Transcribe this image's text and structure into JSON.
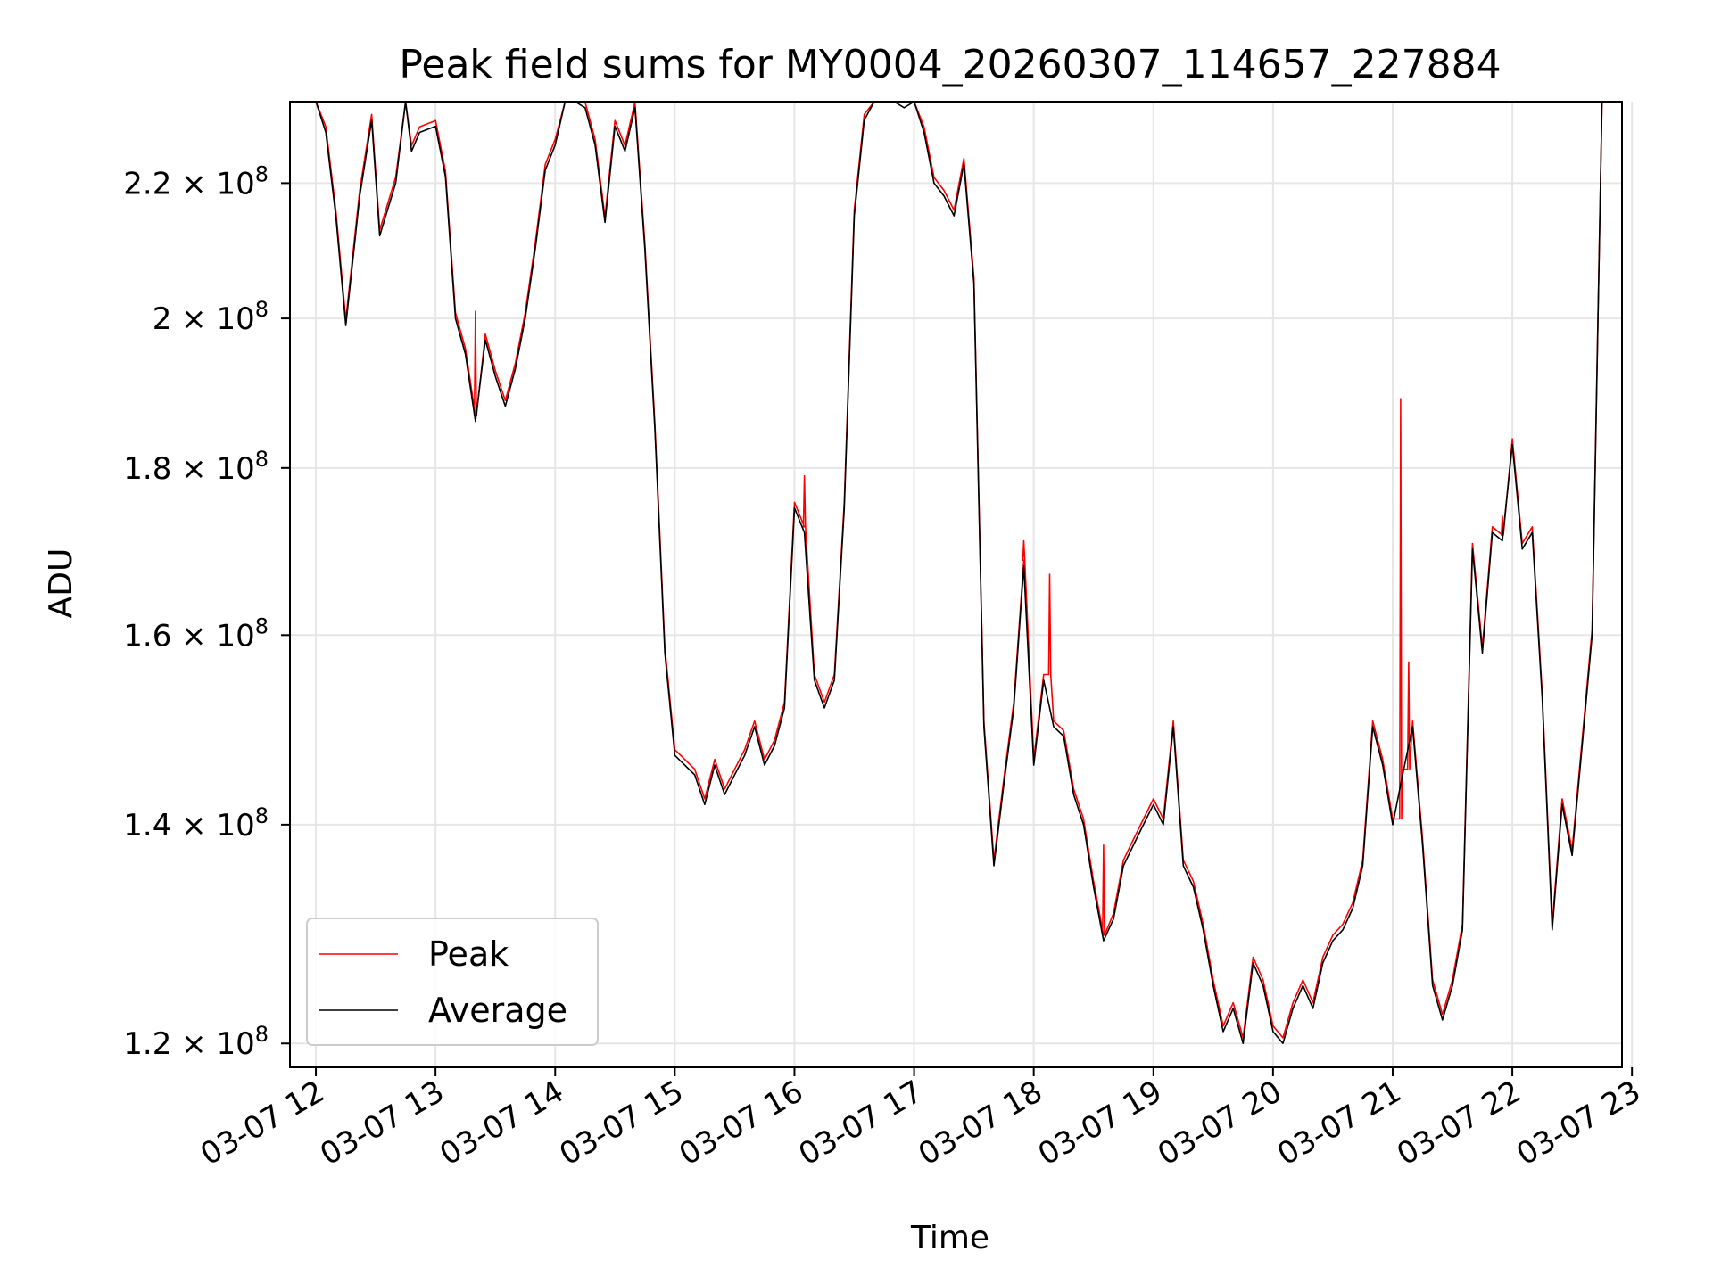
{
  "chart_data": {
    "type": "line",
    "title": "Peak field sums for MY0004_20260307_114657_227884",
    "xlabel": "Time",
    "ylabel": "ADU",
    "yscale": "log",
    "xlim": [
      "03-07 11:47",
      "03-07 22:55"
    ],
    "ylim": [
      118000000,
      233000000
    ],
    "grid": true,
    "legend_position": "lower-left",
    "x_ticks": [
      "03-07 12",
      "03-07 13",
      "03-07 14",
      "03-07 15",
      "03-07 16",
      "03-07 17",
      "03-07 18",
      "03-07 19",
      "03-07 20",
      "03-07 21",
      "03-07 22",
      "03-07 23"
    ],
    "y_ticks": [
      {
        "value": 120000000,
        "mantissa": "1.2",
        "exp": "8"
      },
      {
        "value": 140000000,
        "mantissa": "1.4",
        "exp": "8"
      },
      {
        "value": 160000000,
        "mantissa": "1.6",
        "exp": "8"
      },
      {
        "value": 180000000,
        "mantissa": "1.8",
        "exp": "8"
      },
      {
        "value": 200000000,
        "mantissa": "2",
        "exp": "8"
      },
      {
        "value": 220000000,
        "mantissa": "2.2",
        "exp": "8"
      }
    ],
    "series": [
      {
        "name": "Peak",
        "color": "#ff0000"
      },
      {
        "name": "Average",
        "color": "#000000"
      }
    ],
    "x": [
      "03-07 11:47",
      "03-07 12:00",
      "03-07 12:05",
      "03-07 12:10",
      "03-07 12:15",
      "03-07 12:22",
      "03-07 12:28",
      "03-07 12:32",
      "03-07 12:40",
      "03-07 12:45",
      "03-07 12:48",
      "03-07 12:52",
      "03-07 13:00",
      "03-07 13:05",
      "03-07 13:10",
      "03-07 13:15",
      "03-07 13:20",
      "03-07 13:25",
      "03-07 13:30",
      "03-07 13:35",
      "03-07 13:40",
      "03-07 13:45",
      "03-07 13:50",
      "03-07 13:55",
      "03-07 14:00",
      "03-07 14:05",
      "03-07 14:10",
      "03-07 14:15",
      "03-07 14:20",
      "03-07 14:25",
      "03-07 14:30",
      "03-07 14:35",
      "03-07 14:40",
      "03-07 14:45",
      "03-07 14:50",
      "03-07 14:55",
      "03-07 15:00",
      "03-07 15:05",
      "03-07 15:10",
      "03-07 15:15",
      "03-07 15:20",
      "03-07 15:25",
      "03-07 15:30",
      "03-07 15:35",
      "03-07 15:40",
      "03-07 15:45",
      "03-07 15:50",
      "03-07 15:55",
      "03-07 16:00",
      "03-07 16:05",
      "03-07 16:10",
      "03-07 16:15",
      "03-07 16:20",
      "03-07 16:25",
      "03-07 16:30",
      "03-07 16:35",
      "03-07 16:40",
      "03-07 16:45",
      "03-07 16:50",
      "03-07 16:55",
      "03-07 17:00",
      "03-07 17:05",
      "03-07 17:10",
      "03-07 17:15",
      "03-07 17:20",
      "03-07 17:25",
      "03-07 17:30",
      "03-07 17:35",
      "03-07 17:40",
      "03-07 17:45",
      "03-07 17:50",
      "03-07 17:55",
      "03-07 18:00",
      "03-07 18:05",
      "03-07 18:10",
      "03-07 18:15",
      "03-07 18:20",
      "03-07 18:25",
      "03-07 18:30",
      "03-07 18:35",
      "03-07 18:40",
      "03-07 18:45",
      "03-07 18:50",
      "03-07 18:55",
      "03-07 19:00",
      "03-07 19:05",
      "03-07 19:10",
      "03-07 19:15",
      "03-07 19:20",
      "03-07 19:25",
      "03-07 19:30",
      "03-07 19:35",
      "03-07 19:40",
      "03-07 19:45",
      "03-07 19:50",
      "03-07 19:55",
      "03-07 20:00",
      "03-07 20:05",
      "03-07 20:10",
      "03-07 20:15",
      "03-07 20:20",
      "03-07 20:25",
      "03-07 20:30",
      "03-07 20:35",
      "03-07 20:40",
      "03-07 20:45",
      "03-07 20:50",
      "03-07 20:55",
      "03-07 21:00",
      "03-07 21:05",
      "03-07 21:10",
      "03-07 21:15",
      "03-07 21:20",
      "03-07 21:25",
      "03-07 21:30",
      "03-07 21:35",
      "03-07 21:40",
      "03-07 21:45",
      "03-07 21:50",
      "03-07 21:55",
      "03-07 22:00",
      "03-07 22:05",
      "03-07 22:10",
      "03-07 22:15",
      "03-07 22:20",
      "03-07 22:25",
      "03-07 22:30",
      "03-07 22:35",
      "03-07 22:40",
      "03-07 22:45",
      "03-07 22:50",
      "03-07 22:55"
    ],
    "average": [
      233000000,
      233000000,
      228000000,
      215000000,
      199000000,
      218000000,
      230000000,
      212000000,
      220000000,
      233000000,
      225000000,
      228000000,
      229000000,
      221000000,
      200000000,
      195000000,
      186000000,
      197000000,
      192000000,
      188000000,
      193000000,
      200000000,
      210000000,
      222000000,
      226000000,
      233000000,
      233000000,
      232000000,
      226000000,
      214000000,
      229000000,
      225000000,
      232000000,
      210000000,
      185000000,
      158000000,
      147000000,
      146000000,
      145000000,
      142000000,
      146000000,
      143000000,
      145000000,
      147000000,
      150000000,
      146000000,
      148000000,
      152000000,
      175000000,
      172000000,
      155000000,
      152000000,
      155000000,
      175000000,
      215000000,
      230000000,
      233000000,
      233000000,
      233000000,
      232000000,
      233000000,
      228000000,
      220000000,
      218000000,
      215000000,
      223000000,
      205000000,
      150000000,
      136000000,
      144000000,
      152000000,
      168000000,
      146000000,
      155000000,
      150000000,
      149000000,
      143000000,
      140000000,
      134000000,
      129000000,
      131000000,
      136000000,
      138000000,
      140000000,
      142000000,
      140000000,
      150000000,
      136000000,
      134000000,
      130000000,
      125000000,
      121000000,
      123000000,
      120000000,
      127000000,
      125000000,
      121000000,
      120000000,
      123000000,
      125000000,
      123000000,
      127000000,
      129000000,
      130000000,
      132000000,
      136000000,
      150000000,
      146000000,
      140000000,
      145000000,
      150000000,
      138000000,
      125000000,
      122000000,
      125000000,
      130000000,
      170000000,
      158000000,
      172000000,
      171000000,
      183000000,
      170000000,
      172000000,
      153000000,
      130000000,
      142000000,
      137000000,
      148000000,
      160000000,
      233000000
    ],
    "peak_spikes": [
      {
        "x": "03-07 13:20",
        "y": 201000000
      },
      {
        "x": "03-07 16:05",
        "y": 179000000
      },
      {
        "x": "03-07 17:55",
        "y": 171000000
      },
      {
        "x": "03-07 18:08",
        "y": 167000000
      },
      {
        "x": "03-07 18:35",
        "y": 138000000
      },
      {
        "x": "03-07 21:04",
        "y": 189000000
      },
      {
        "x": "03-07 21:08",
        "y": 157000000
      },
      {
        "x": "03-07 21:55",
        "y": 174000000
      }
    ]
  }
}
